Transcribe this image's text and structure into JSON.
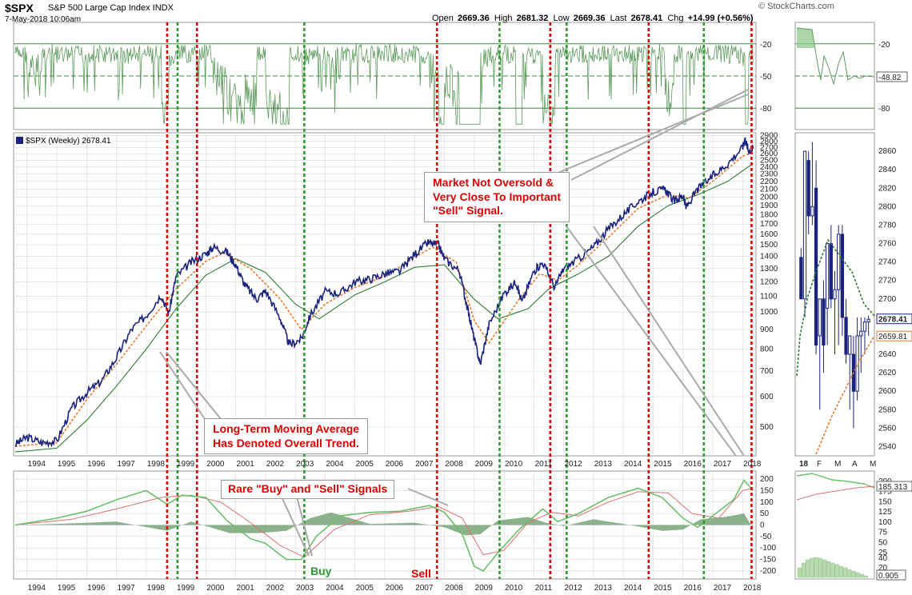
{
  "header": {
    "symbol": "$SPX",
    "description": "S&P 500 Large Cap Index INDX",
    "date": "7-May-2018 10:06am",
    "open_label": "Open",
    "open": "2669.36",
    "high_label": "High",
    "high": "2681.32",
    "low_label": "Low",
    "low": "2669.36",
    "last_label": "Last",
    "last": "2678.41",
    "chg_label": "Chg",
    "chg": "+14.99 (+0.56%)",
    "site": "© StockCharts.com"
  },
  "colors": {
    "price": "#1a237e",
    "signal_sell": "#e00000",
    "signal_buy": "#2f9a2f",
    "ma_short": "#e8782a",
    "ma_long": "#2e7d32",
    "rsi_fill": "#8ec88e",
    "rsi_line": "#5e9c5e",
    "macd_line": "#6bbf6b",
    "macd_signal": "#e07070",
    "hist": "#6f9f6f",
    "grid": "#d8d8d8"
  },
  "chart_data": [
    {
      "type": "area",
      "panel": "oscillator",
      "levels": [
        "-20",
        "-50",
        "-80"
      ],
      "ylim": [
        -100,
        0
      ],
      "grid": true
    },
    {
      "type": "line",
      "panel": "price",
      "title": "$SPX (Weekly) 2678.41",
      "scale": "log",
      "ylim": [
        420,
        2950
      ],
      "yticks": [
        "2900",
        "2800",
        "2700",
        "2600",
        "2500",
        "2400",
        "2300",
        "2200",
        "2100",
        "2000",
        "1900",
        "1800",
        "1700",
        "1600",
        "1500",
        "1400",
        "1300",
        "1200",
        "1100",
        "1000",
        "900",
        "800",
        "700",
        "600",
        "500"
      ],
      "xticks": [
        "1994",
        "1995",
        "1996",
        "1997",
        "1998",
        "1999",
        "2000",
        "2001",
        "2002",
        "2003",
        "2004",
        "2005",
        "2006",
        "2007",
        "2008",
        "2009",
        "2010",
        "2011",
        "2012",
        "2013",
        "2014",
        "2015",
        "2016",
        "2017",
        "2018"
      ],
      "xlim": [
        1993.55,
        2018.45
      ],
      "series": [
        {
          "role": "price",
          "x": [
            1993.6,
            1994.0,
            1994.5,
            1995.0,
            1995.5,
            1996.0,
            1996.5,
            1997.0,
            1997.5,
            1998.0,
            1998.5,
            1998.75,
            1999.0,
            1999.5,
            2000.0,
            2000.25,
            2000.7,
            2001.0,
            2001.3,
            2001.7,
            2002.0,
            2002.5,
            2002.8,
            2003.2,
            2003.5,
            2004.0,
            2004.5,
            2005.0,
            2005.5,
            2006.0,
            2006.5,
            2007.0,
            2007.45,
            2007.8,
            2008.0,
            2008.5,
            2008.8,
            2009.0,
            2009.2,
            2009.5,
            2010.0,
            2010.4,
            2010.6,
            2011.0,
            2011.3,
            2011.7,
            2012.0,
            2012.5,
            2013.0,
            2013.5,
            2014.0,
            2014.5,
            2015.0,
            2015.4,
            2015.7,
            2016.0,
            2016.1,
            2016.5,
            2017.0,
            2017.5,
            2018.0,
            2018.08,
            2018.2,
            2018.35
          ],
          "y": [
            450,
            470,
            455,
            460,
            560,
            615,
            660,
            760,
            900,
            980,
            1110,
            990,
            1240,
            1350,
            1420,
            1480,
            1440,
            1330,
            1180,
            1080,
            1140,
            960,
            820,
            850,
            980,
            1130,
            1120,
            1200,
            1220,
            1260,
            1280,
            1420,
            1520,
            1500,
            1380,
            1280,
            1000,
            850,
            730,
            930,
            1120,
            1200,
            1060,
            1280,
            1350,
            1160,
            1300,
            1380,
            1480,
            1650,
            1800,
            1950,
            2060,
            2100,
            1950,
            2020,
            1880,
            2100,
            2270,
            2450,
            2700,
            2850,
            2650,
            2678
          ]
        },
        {
          "role": "ma-short",
          "x": [
            1993.6,
            1995.0,
            1996.0,
            1997.0,
            1998.0,
            1999.0,
            2000.0,
            2000.6,
            2001.5,
            2002.5,
            2003.2,
            2004.0,
            2005.0,
            2006.0,
            2007.0,
            2007.6,
            2008.4,
            2009.0,
            2009.5,
            2010.5,
            2011.2,
            2011.8,
            2012.5,
            2013.5,
            2014.5,
            2015.5,
            2016.2,
            2017.0,
            2018.0,
            2018.35
          ],
          "y": [
            445,
            455,
            590,
            730,
            920,
            1150,
            1360,
            1430,
            1300,
            1080,
            900,
            1050,
            1160,
            1240,
            1390,
            1480,
            1350,
            950,
            830,
            1080,
            1260,
            1210,
            1330,
            1570,
            1870,
            2030,
            1990,
            2200,
            2560,
            2620
          ]
        },
        {
          "role": "ma-long",
          "x": [
            1993.6,
            1995.0,
            1996.0,
            1997.0,
            1998.0,
            1999.0,
            2000.0,
            2001.0,
            2002.0,
            2003.0,
            2003.8,
            2005.0,
            2006.0,
            2007.0,
            2008.0,
            2009.0,
            2009.8,
            2010.8,
            2011.5,
            2012.5,
            2013.5,
            2014.5,
            2015.5,
            2016.5,
            2017.5,
            2018.35
          ],
          "y": [
            430,
            440,
            520,
            640,
            800,
            1020,
            1250,
            1380,
            1270,
            1050,
            960,
            1110,
            1200,
            1310,
            1330,
            1080,
            960,
            1020,
            1150,
            1260,
            1400,
            1680,
            1900,
            2030,
            2200,
            2450
          ]
        }
      ]
    },
    {
      "type": "line",
      "panel": "macd",
      "ylim": [
        -235,
        235
      ],
      "yticks": [
        "200",
        "150",
        "100",
        "50",
        "0",
        "-50",
        "-100",
        "-150",
        "-200"
      ],
      "series": [
        {
          "role": "macd-line",
          "x": [
            1993.6,
            1995.0,
            1996.0,
            1997.0,
            1998.0,
            1998.7,
            1999.2,
            2000.0,
            2000.7,
            2001.5,
            2002.0,
            2002.7,
            2003.2,
            2003.7,
            2004.5,
            2005.5,
            2006.5,
            2007.5,
            2008.0,
            2008.6,
            2009.0,
            2009.3,
            2009.8,
            2010.5,
            2011.3,
            2011.8,
            2012.5,
            2013.5,
            2014.5,
            2015.3,
            2016.0,
            2016.5,
            2017.0,
            2017.7,
            2018.05,
            2018.35
          ],
          "y": [
            0,
            30,
            60,
            110,
            150,
            90,
            130,
            120,
            20,
            -60,
            -80,
            -150,
            -150,
            -50,
            40,
            55,
            60,
            85,
            55,
            -40,
            -180,
            -200,
            -120,
            -20,
            70,
            15,
            50,
            120,
            160,
            120,
            30,
            -10,
            40,
            110,
            195,
            150
          ]
        },
        {
          "role": "signal-line",
          "x": [
            1993.6,
            1995.5,
            1997.0,
            1998.5,
            1999.5,
            2000.5,
            2001.5,
            2002.5,
            2003.3,
            2004.3,
            2005.5,
            2006.8,
            2007.8,
            2008.6,
            2009.3,
            2010.0,
            2010.8,
            2011.6,
            2012.5,
            2013.5,
            2014.5,
            2015.5,
            2016.3,
            2017.2,
            2018.0,
            2018.35
          ],
          "y": [
            0,
            25,
            70,
            120,
            130,
            100,
            10,
            -90,
            -140,
            -20,
            45,
            60,
            80,
            30,
            -130,
            -110,
            10,
            55,
            40,
            100,
            145,
            140,
            50,
            30,
            150,
            160
          ]
        },
        {
          "role": "histogram",
          "x": [
            1993.6,
            1995.0,
            1997.0,
            1998.7,
            1999.5,
            2000.8,
            2001.8,
            2002.7,
            2003.5,
            2004.2,
            2005.5,
            2007.0,
            2008.0,
            2008.7,
            2009.2,
            2009.8,
            2010.8,
            2011.4,
            2012.0,
            2013.0,
            2014.0,
            2015.3,
            2016.0,
            2016.6,
            2017.4,
            2018.05,
            2018.35
          ],
          "y": [
            0,
            5,
            15,
            -25,
            15,
            -35,
            -35,
            -25,
            30,
            55,
            5,
            10,
            -10,
            -45,
            -40,
            20,
            35,
            10,
            -5,
            25,
            5,
            -25,
            -20,
            25,
            35,
            50,
            -15
          ]
        }
      ]
    },
    {
      "type": "line",
      "panel": "inset-price",
      "ylim": [
        2530,
        2880
      ],
      "yticks": [
        "2860",
        "2840",
        "2820",
        "2800",
        "2780",
        "2760",
        "2740",
        "2720",
        "2700",
        "2680",
        "2660",
        "2640",
        "2620",
        "2600",
        "2580",
        "2560",
        "2540"
      ],
      "xticks": [
        "18",
        "F",
        "M",
        "A",
        "M"
      ],
      "price_labels": [
        "2678.41",
        "2659.81"
      ],
      "ma_values": [
        "2682.16"
      ]
    },
    {
      "type": "line",
      "panel": "inset-oscillator",
      "levels": [
        "-20",
        "-50",
        "-80"
      ],
      "last_value": "-48.82"
    },
    {
      "type": "line",
      "panel": "inset-macd",
      "yticks": [
        "200",
        "175",
        "150",
        "125",
        "100",
        "75",
        "50",
        "25"
      ],
      "last_value": "185.313",
      "sub_yticks": [
        "40",
        "20"
      ],
      "sub_last_value": "0.905"
    }
  ],
  "signals": {
    "red": [
      1998.7,
      1999.7,
      2007.75,
      2011.55,
      2014.85,
      2018.3
    ],
    "green": [
      1999.05,
      2003.3,
      2009.85,
      2012.1,
      2016.7
    ]
  },
  "annotations": {
    "box1_line1": "Market Not Oversold &",
    "box1_line2": "Very Close To Important",
    "box1_line3": "\"Sell\" Signal.",
    "box2_line1": "Long-Term Moving Average",
    "box2_line2": "Has Denoted Overall Trend.",
    "box3": "Rare \"Buy\" and \"Sell\" Signals",
    "buy": "Buy",
    "sell": "Sell"
  }
}
